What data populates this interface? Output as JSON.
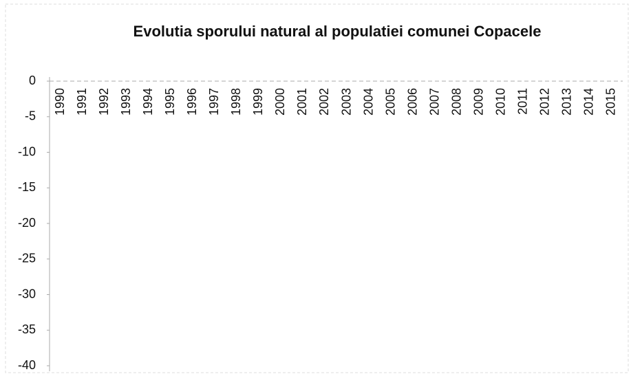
{
  "chart_data": {
    "type": "bar",
    "title": "Evolutia sporului natural al populatiei comunei Copacele",
    "categories": [
      "1990",
      "1991",
      "1992",
      "1993",
      "1994",
      "1995",
      "1996",
      "1997",
      "1998",
      "1999",
      "2000",
      "2001",
      "2002",
      "2003",
      "2004",
      "2005",
      "2006",
      "2007",
      "2008",
      "2009",
      "2010",
      "2011",
      "2012",
      "2013",
      "2014",
      "2015"
    ],
    "values": [
      null,
      null,
      null,
      null,
      null,
      null,
      null,
      null,
      null,
      null,
      null,
      null,
      null,
      null,
      null,
      null,
      null,
      null,
      null,
      null,
      null,
      null,
      null,
      null,
      null,
      null
    ],
    "color": "#4472c4",
    "ylim": [
      -40,
      0
    ],
    "yticks": [
      0,
      -5,
      -10,
      -15,
      -20,
      -25,
      -30,
      -35,
      -40
    ],
    "grid": false
  }
}
